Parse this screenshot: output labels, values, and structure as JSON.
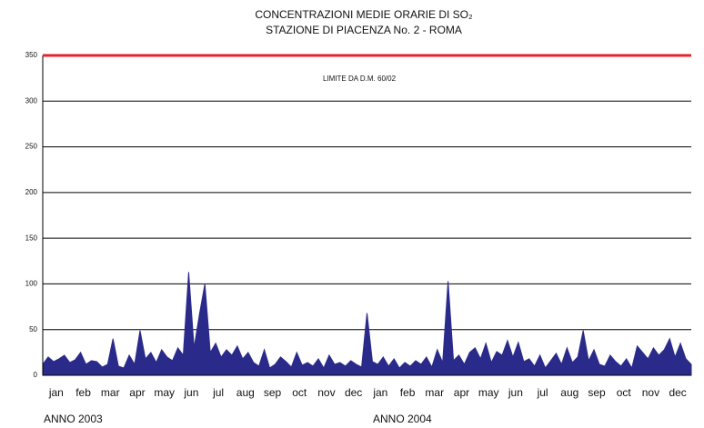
{
  "chart_data": {
    "type": "area",
    "title": "CONCENTRAZIONI MEDIE ORARIE DI SO₂",
    "subtitle": "STAZIONE DI PIACENZA No. 2 - ROMA",
    "year_labels": [
      "ANNO 2003",
      "ANNO 2004"
    ],
    "threshold": {
      "value": 350,
      "label": "LIMITE DA D.M. 60/02",
      "color": "#e8202a"
    },
    "xlim": [
      0,
      24
    ],
    "xticks": [
      {
        "value": 0.5,
        "label": "jan"
      },
      {
        "value": 1.5,
        "label": "feb"
      },
      {
        "value": 2.5,
        "label": "mar"
      },
      {
        "value": 3.5,
        "label": "apr"
      },
      {
        "value": 4.5,
        "label": "may"
      },
      {
        "value": 5.5,
        "label": "jun"
      },
      {
        "value": 6.5,
        "label": "jul"
      },
      {
        "value": 7.5,
        "label": "aug"
      },
      {
        "value": 8.5,
        "label": "sep"
      },
      {
        "value": 9.5,
        "label": "oct"
      },
      {
        "value": 10.5,
        "label": "nov"
      },
      {
        "value": 11.5,
        "label": "dec"
      },
      {
        "value": 12.5,
        "label": "jan"
      },
      {
        "value": 13.5,
        "label": "feb"
      },
      {
        "value": 14.5,
        "label": "mar"
      },
      {
        "value": 15.5,
        "label": "apr"
      },
      {
        "value": 16.5,
        "label": "may"
      },
      {
        "value": 17.5,
        "label": "jun"
      },
      {
        "value": 18.5,
        "label": "jul"
      },
      {
        "value": 19.5,
        "label": "aug"
      },
      {
        "value": 20.5,
        "label": "sep"
      },
      {
        "value": 21.5,
        "label": "oct"
      },
      {
        "value": 22.5,
        "label": "nov"
      },
      {
        "value": 23.5,
        "label": "dec"
      }
    ],
    "ylim": [
      0,
      350
    ],
    "yticks": [
      0,
      50,
      100,
      150,
      200,
      250,
      300,
      350
    ],
    "grid": true,
    "color": "#2a2a8a",
    "x": [
      0,
      0.2,
      0.4,
      0.6,
      0.8,
      1,
      1.2,
      1.4,
      1.6,
      1.8,
      2,
      2.2,
      2.4,
      2.6,
      2.8,
      3,
      3.2,
      3.4,
      3.6,
      3.8,
      4,
      4.2,
      4.4,
      4.6,
      4.8,
      5,
      5.2,
      5.4,
      5.6,
      5.8,
      6,
      6.2,
      6.4,
      6.6,
      6.8,
      7,
      7.2,
      7.4,
      7.6,
      7.8,
      8,
      8.2,
      8.4,
      8.6,
      8.8,
      9,
      9.2,
      9.4,
      9.6,
      9.8,
      10,
      10.2,
      10.4,
      10.6,
      10.8,
      11,
      11.2,
      11.4,
      11.6,
      11.8,
      12,
      12.2,
      12.4,
      12.6,
      12.8,
      13,
      13.2,
      13.4,
      13.6,
      13.8,
      14,
      14.2,
      14.4,
      14.6,
      14.8,
      15,
      15.2,
      15.4,
      15.6,
      15.8,
      16,
      16.2,
      16.4,
      16.6,
      16.8,
      17,
      17.2,
      17.4,
      17.6,
      17.8,
      18,
      18.2,
      18.4,
      18.6,
      18.8,
      19,
      19.2,
      19.4,
      19.6,
      19.8,
      20,
      20.2,
      20.4,
      20.6,
      20.8,
      21,
      21.2,
      21.4,
      21.6,
      21.8,
      22,
      22.2,
      22.4,
      22.6,
      22.8,
      23,
      23.2,
      23.4,
      23.6,
      23.8,
      24
    ],
    "values": [
      12,
      20,
      15,
      18,
      22,
      14,
      17,
      25,
      12,
      16,
      15,
      9,
      12,
      40,
      10,
      8,
      22,
      12,
      49,
      18,
      25,
      14,
      28,
      20,
      16,
      30,
      22,
      113,
      30,
      67,
      100,
      25,
      35,
      20,
      28,
      22,
      32,
      18,
      25,
      14,
      10,
      28,
      8,
      12,
      20,
      15,
      9,
      25,
      11,
      14,
      10,
      18,
      8,
      22,
      12,
      14,
      10,
      16,
      12,
      9,
      68,
      15,
      12,
      20,
      10,
      18,
      8,
      14,
      10,
      16,
      12,
      20,
      9,
      28,
      14,
      103,
      16,
      22,
      12,
      25,
      30,
      18,
      35,
      14,
      26,
      22,
      38,
      20,
      36,
      15,
      18,
      10,
      22,
      8,
      16,
      24,
      12,
      30,
      14,
      20,
      49,
      16,
      28,
      12,
      10,
      22,
      15,
      10,
      18,
      8,
      32,
      25,
      18,
      30,
      22,
      28,
      40,
      20,
      35,
      18,
      12
    ]
  }
}
